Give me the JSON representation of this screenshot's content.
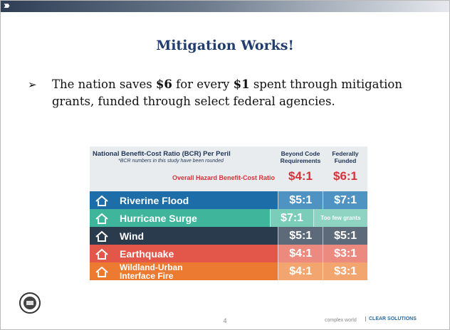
{
  "header": {
    "title": "Mitigation Works!"
  },
  "bullet": {
    "parts": [
      "The nation saves ",
      "$6",
      " for every ",
      "$1",
      " spent through mitigation grants, funded through select federal agencies."
    ]
  },
  "table": {
    "title": "National Benefit-Cost Ratio (BCR) Per Peril",
    "note": "*BCR numbers in this study have been rounded",
    "columns": [
      "Beyond Code Requirements",
      "Federally Funded"
    ],
    "overall": {
      "label": "Overall Hazard Benefit-Cost Ratio",
      "values": [
        "$4:1",
        "$6:1"
      ]
    },
    "rows": [
      {
        "label": "Riverine Flood",
        "color": "#1d6ea8",
        "tint": "#4f93c2",
        "values": [
          "$5:1",
          "$7:1"
        ]
      },
      {
        "label": "Hurricane Surge",
        "color": "#3fb59c",
        "tint": "#79cdb9",
        "values": [
          "$7:1",
          "Too few grants"
        ]
      },
      {
        "label": "Wind",
        "color": "#2b3b4e",
        "tint": "#5d6a7a",
        "values": [
          "$5:1",
          "$5:1"
        ]
      },
      {
        "label": "Earthquake",
        "color": "#e2574a",
        "tint": "#ec8a80",
        "values": [
          "$4:1",
          "$3:1"
        ]
      },
      {
        "label": "Wildland-Urban Interface Fire",
        "color": "#ec7a30",
        "tint": "#f3a56f",
        "values": [
          "$4:1",
          "$3:1"
        ]
      }
    ]
  },
  "footer": {
    "page": "4",
    "tagline": "complex world",
    "brand": "CLEAR SOLUTIONS"
  }
}
